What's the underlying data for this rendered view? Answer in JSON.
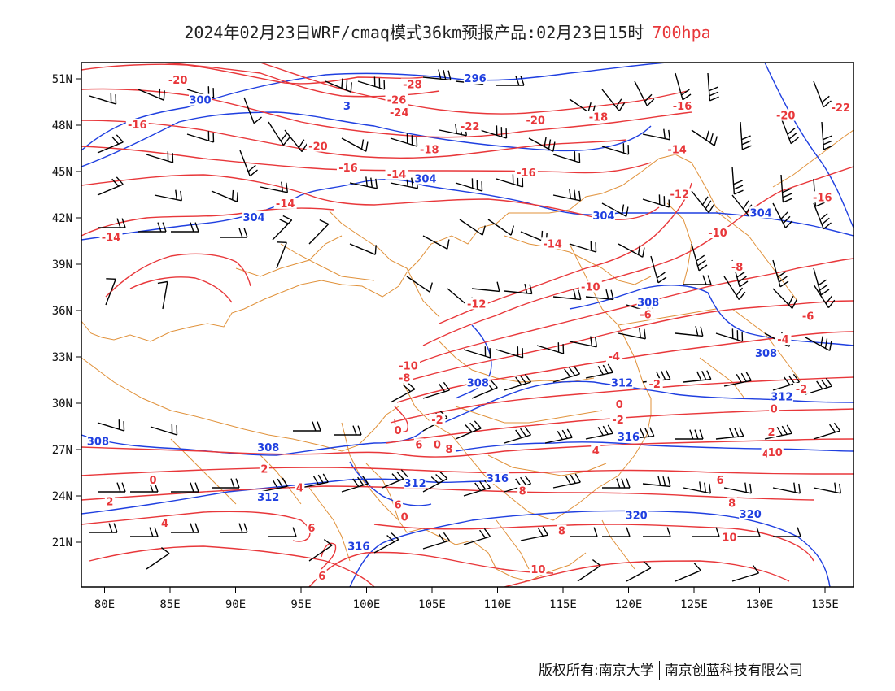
{
  "title": {
    "main": "2024年02月23日WRF/cmaq模式36km预报产品:02月23日15时",
    "level": "700hpa"
  },
  "axes": {
    "x_ticks": [
      "80E",
      "85E",
      "90E",
      "95E",
      "100E",
      "105E",
      "110E",
      "115E",
      "120E",
      "125E",
      "130E",
      "135E"
    ],
    "y_ticks": [
      "51N",
      "48N",
      "45N",
      "42N",
      "39N",
      "36N",
      "33N",
      "30N",
      "27N",
      "24N",
      "21N"
    ]
  },
  "colors": {
    "temperature": "#e8373a",
    "height": "#1f3fe0",
    "borders": "#e0913a",
    "wind_barbs": "#000000",
    "frame": "#000000"
  },
  "map_layers": [
    "temperature-isotherms",
    "geopotential-height-contours",
    "wind-barbs",
    "boundaries"
  ],
  "temperature_labels": [
    {
      "text": "-20",
      "lon": 85.6,
      "lat": 50.9
    },
    {
      "text": "-28",
      "lon": 103.5,
      "lat": 50.6
    },
    {
      "text": "-26",
      "lon": 102.3,
      "lat": 49.6
    },
    {
      "text": "-24",
      "lon": 102.5,
      "lat": 48.8
    },
    {
      "text": "-22",
      "lon": 107.9,
      "lat": 47.9
    },
    {
      "text": "-20",
      "lon": 112.9,
      "lat": 48.3
    },
    {
      "text": "-18",
      "lon": 117.7,
      "lat": 48.5
    },
    {
      "text": "-16",
      "lon": 82.5,
      "lat": 48.0
    },
    {
      "text": "-20",
      "lon": 96.3,
      "lat": 46.6
    },
    {
      "text": "-18",
      "lon": 104.8,
      "lat": 46.4
    },
    {
      "text": "-16",
      "lon": 98.6,
      "lat": 45.2
    },
    {
      "text": "-14",
      "lon": 102.3,
      "lat": 44.8
    },
    {
      "text": "-16",
      "lon": 112.2,
      "lat": 44.9
    },
    {
      "text": "-16",
      "lon": 124.1,
      "lat": 49.2
    },
    {
      "text": "-14",
      "lon": 123.7,
      "lat": 46.4
    },
    {
      "text": "-12",
      "lon": 123.9,
      "lat": 43.5
    },
    {
      "text": "-20",
      "lon": 132.0,
      "lat": 48.6
    },
    {
      "text": "-22",
      "lon": 136.2,
      "lat": 49.1
    },
    {
      "text": "-16",
      "lon": 134.8,
      "lat": 43.3
    },
    {
      "text": "-14",
      "lon": 93.8,
      "lat": 42.9
    },
    {
      "text": "-14",
      "lon": 80.5,
      "lat": 40.7
    },
    {
      "text": "-14",
      "lon": 114.2,
      "lat": 40.3
    },
    {
      "text": "-10",
      "lon": 126.8,
      "lat": 41.0
    },
    {
      "text": "-8",
      "lon": 128.3,
      "lat": 38.8
    },
    {
      "text": "-10",
      "lon": 117.1,
      "lat": 37.5
    },
    {
      "text": "-12",
      "lon": 108.4,
      "lat": 36.4
    },
    {
      "text": "-6",
      "lon": 121.3,
      "lat": 35.7
    },
    {
      "text": "-6",
      "lon": 133.7,
      "lat": 35.6
    },
    {
      "text": "-4",
      "lon": 131.8,
      "lat": 34.1
    },
    {
      "text": "-4",
      "lon": 118.9,
      "lat": 33.0
    },
    {
      "text": "-10",
      "lon": 103.2,
      "lat": 32.4
    },
    {
      "text": "-8",
      "lon": 102.9,
      "lat": 31.6
    },
    {
      "text": "-2",
      "lon": 122.0,
      "lat": 31.2
    },
    {
      "text": "-2",
      "lon": 133.2,
      "lat": 30.9
    },
    {
      "text": "0",
      "lon": 119.3,
      "lat": 29.9
    },
    {
      "text": "0",
      "lon": 131.1,
      "lat": 29.6
    },
    {
      "text": "-2",
      "lon": 105.4,
      "lat": 28.9
    },
    {
      "text": "0",
      "lon": 102.4,
      "lat": 28.2
    },
    {
      "text": "-2",
      "lon": 119.2,
      "lat": 28.9
    },
    {
      "text": "2",
      "lon": 130.9,
      "lat": 28.1
    },
    {
      "text": "6",
      "lon": 104.0,
      "lat": 27.3
    },
    {
      "text": "0",
      "lon": 105.4,
      "lat": 27.3
    },
    {
      "text": "8",
      "lon": 106.3,
      "lat": 27.0
    },
    {
      "text": "4",
      "lon": 117.5,
      "lat": 26.9
    },
    {
      "text": "4",
      "lon": 130.5,
      "lat": 26.7
    },
    {
      "text": "10",
      "lon": 131.2,
      "lat": 26.8
    },
    {
      "text": "2",
      "lon": 92.2,
      "lat": 25.7
    },
    {
      "text": "0",
      "lon": 83.7,
      "lat": 25.0
    },
    {
      "text": "4",
      "lon": 94.9,
      "lat": 24.5
    },
    {
      "text": "6",
      "lon": 127.0,
      "lat": 25.0
    },
    {
      "text": "8",
      "lon": 111.9,
      "lat": 24.3
    },
    {
      "text": "2",
      "lon": 80.4,
      "lat": 23.6
    },
    {
      "text": "6",
      "lon": 102.4,
      "lat": 23.4
    },
    {
      "text": "0",
      "lon": 102.9,
      "lat": 22.6
    },
    {
      "text": "8",
      "lon": 127.9,
      "lat": 23.5
    },
    {
      "text": "4",
      "lon": 84.6,
      "lat": 22.2
    },
    {
      "text": "6",
      "lon": 95.8,
      "lat": 21.9
    },
    {
      "text": "8",
      "lon": 114.9,
      "lat": 21.7
    },
    {
      "text": "10",
      "lon": 127.7,
      "lat": 21.3
    },
    {
      "text": "6",
      "lon": 96.6,
      "lat": 18.8
    },
    {
      "text": "10",
      "lon": 113.1,
      "lat": 19.2
    }
  ],
  "height_labels": [
    {
      "text": "296",
      "lon": 108.3,
      "lat": 51.0
    },
    {
      "text": "300",
      "lon": 87.3,
      "lat": 49.6
    },
    {
      "text": "3",
      "lon": 98.5,
      "lat": 49.2
    },
    {
      "text": "304",
      "lon": 104.5,
      "lat": 44.5
    },
    {
      "text": "304",
      "lon": 91.4,
      "lat": 42.0
    },
    {
      "text": "304",
      "lon": 118.1,
      "lat": 42.1
    },
    {
      "text": "304",
      "lon": 130.1,
      "lat": 42.3
    },
    {
      "text": "308",
      "lon": 121.5,
      "lat": 36.5
    },
    {
      "text": "308",
      "lon": 130.5,
      "lat": 33.2
    },
    {
      "text": "308",
      "lon": 108.5,
      "lat": 31.3
    },
    {
      "text": "312",
      "lon": 119.5,
      "lat": 31.3
    },
    {
      "text": "312",
      "lon": 131.7,
      "lat": 30.4
    },
    {
      "text": "308",
      "lon": 79.5,
      "lat": 27.5
    },
    {
      "text": "308",
      "lon": 92.5,
      "lat": 27.1
    },
    {
      "text": "316",
      "lon": 120.0,
      "lat": 27.8
    },
    {
      "text": "312",
      "lon": 103.7,
      "lat": 24.8
    },
    {
      "text": "316",
      "lon": 110.0,
      "lat": 25.1
    },
    {
      "text": "312",
      "lon": 92.5,
      "lat": 23.9
    },
    {
      "text": "320",
      "lon": 120.6,
      "lat": 22.7
    },
    {
      "text": "320",
      "lon": 129.3,
      "lat": 22.8
    },
    {
      "text": "316",
      "lon": 99.4,
      "lat": 20.7
    }
  ],
  "footer": {
    "left": "版权所有:南京大学",
    "right": "南京创蓝科技有限公司"
  }
}
